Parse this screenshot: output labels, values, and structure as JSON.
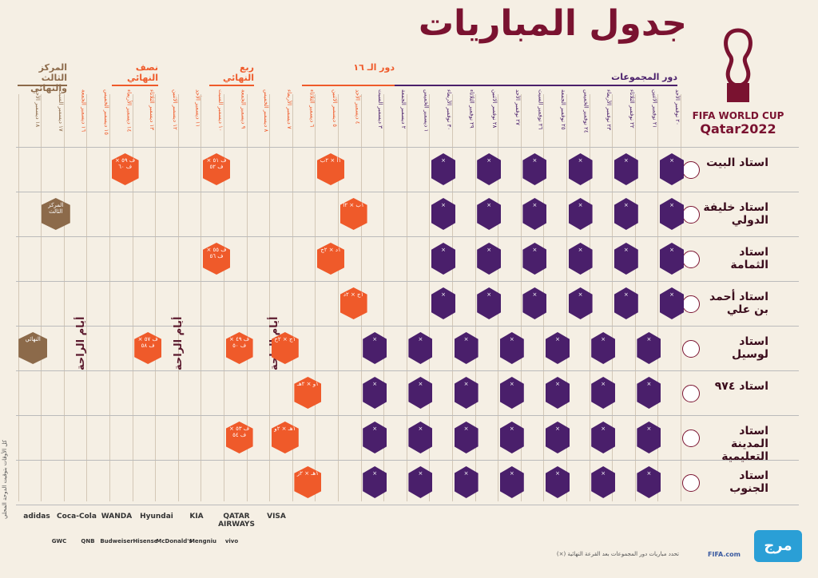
{
  "title": "جدول المباريات",
  "brand": {
    "line1": "FIFA WORLD CUP",
    "line2": "Qatar2022"
  },
  "stages": {
    "group": "دور المجموعات",
    "r16": "دور الـ ١٦",
    "qf": "ربع النهائي",
    "sf": "نصف النهائي",
    "final": "المركز الثالث والنهائي"
  },
  "rest_days": [
    "أيام الراحة",
    "أيام الراحة",
    "أيام الراحة"
  ],
  "stadiums": [
    {
      "name": "استاد البيت"
    },
    {
      "name": "استاد خليفة الدولي"
    },
    {
      "name": "استاد الثمامة"
    },
    {
      "name": "استاد أحمد بن علي"
    },
    {
      "name": "استاد لوسيل"
    },
    {
      "name": "استاد ٩٧٤"
    },
    {
      "name": "استاد المدينة التعليمية"
    },
    {
      "name": "استاد الجنوب"
    }
  ],
  "dates": [
    "٢٠ نوفمبر الأحد",
    "٢١ نوفمبر الاثنين",
    "٢٢ نوفمبر الثلاثاء",
    "٢٣ نوفمبر الأربعاء",
    "٢٤ نوفمبر الخميس",
    "٢٥ نوفمبر الجمعة",
    "٢٦ نوفمبر السبت",
    "٢٧ نوفمبر الأحد",
    "٢٨ نوفمبر الاثنين",
    "٢٩ نوفمبر الثلاثاء",
    "٣٠ نوفمبر الأربعاء",
    "١ ديسمبر الخميس",
    "٢ ديسمبر الجمعة",
    "٣ ديسمبر السبت",
    "٤ ديسمبر الأحد",
    "٥ ديسمبر الاثنين",
    "٦ ديسمبر الثلاثاء",
    "٧ ديسمبر الأربعاء",
    "٨ ديسمبر الخميس",
    "٩ ديسمبر الجمعة",
    "١٠ ديسمبر السبت",
    "١١ ديسمبر الأحد",
    "١٢ ديسمبر الاثنين",
    "١٣ ديسمبر الثلاثاء",
    "١٤ ديسمبر الأربعاء",
    "١٥ ديسمبر الخميس",
    "١٦ ديسمبر الجمعة",
    "١٧ ديسمبر السبت",
    "١٨ ديسمبر الأحد"
  ],
  "ko_labels": {
    "r16_1": "١أ × ٢ب",
    "r16_2": "١ب × ٢أ",
    "r16_3": "١د × ٢ج",
    "r16_4": "١ج × ٢د",
    "r16_5": "١ج × ٢ح",
    "r16_6": "١و × ٢هـ",
    "r16_7": "١هـ × ٢و",
    "r16_8": "١هـ × ٢ز",
    "qf_1": "ف ٥١ × ف ٥٢",
    "qf_2": "ف ٥٥ × ف ٥٦",
    "qf_3": "ف ٤٩ × ف ٥٠",
    "qf_4": "ف ٥٣ × ف ٥٤",
    "sf_1": "ف ٥٩ × ف ٦٠",
    "sf_2": "ف ٥٧ × ف ٥٨",
    "third": "المركز الثالث",
    "final": "النهائي"
  },
  "sponsors_row1": [
    "VISA",
    "QATAR AIRWAYS",
    "KIA",
    "Hyundai",
    "WANDA",
    "Coca-Cola",
    "adidas"
  ],
  "sponsors_row2": [
    "vivo",
    "Mengniu",
    "McDonald's",
    "Hisense",
    "Budweiser",
    "QNB",
    "GWC"
  ],
  "footer_note": "تحدد مباريات دور المجموعات بعد القرعة النهائية (×)",
  "fifa_com": "FIFA.com",
  "side_note": "كل الأوقات بتوقيت الدوحة المحلي"
}
